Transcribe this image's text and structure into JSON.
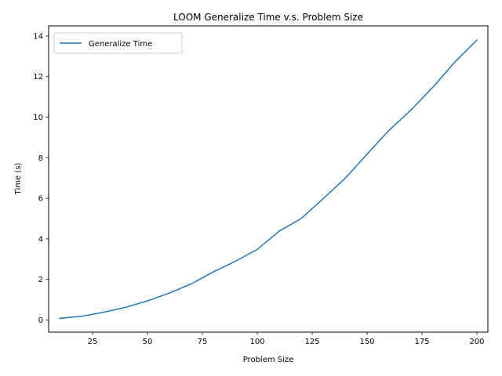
{
  "chart_data": {
    "type": "line",
    "title": "LOOM Generalize Time v.s. Problem Size",
    "xlabel": "Problem Size",
    "ylabel": "Time (s)",
    "xlim": [
      5,
      205
    ],
    "ylim": [
      -0.6,
      14.5
    ],
    "xticks": [
      25,
      50,
      75,
      100,
      125,
      150,
      175,
      200
    ],
    "yticks": [
      0,
      2,
      4,
      6,
      8,
      10,
      12,
      14
    ],
    "grid": false,
    "legend_position": "top-left",
    "series": [
      {
        "name": "Generalize Time",
        "color": "#1f77b4",
        "x": [
          10,
          20,
          30,
          40,
          50,
          60,
          70,
          80,
          90,
          100,
          110,
          120,
          130,
          140,
          150,
          160,
          170,
          180,
          190,
          200
        ],
        "y": [
          0.08,
          0.18,
          0.38,
          0.62,
          0.94,
          1.33,
          1.78,
          2.37,
          2.89,
          3.48,
          4.38,
          5.0,
          5.98,
          6.98,
          8.18,
          9.35,
          10.35,
          11.48,
          12.72,
          13.8
        ]
      }
    ]
  }
}
